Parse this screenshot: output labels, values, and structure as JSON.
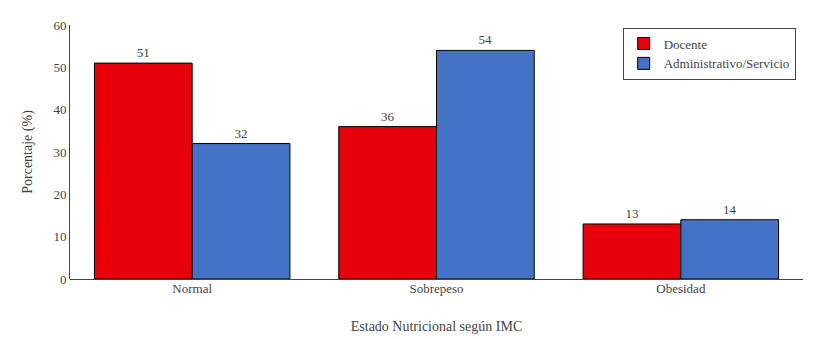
{
  "chart_data": {
    "type": "bar",
    "categories": [
      "Normal",
      "Sobrepeso",
      "Obesidad"
    ],
    "series": [
      {
        "name": "Docente",
        "color": "#e8000a",
        "values": [
          51,
          36,
          13
        ]
      },
      {
        "name": "Administrativo/Servicio",
        "color": "#4472c4",
        "values": [
          32,
          54,
          14
        ]
      }
    ],
    "xlabel": "Estado Nutricional según IMC",
    "ylabel": "Porcentaje (%)",
    "ylim": [
      0,
      60
    ],
    "yticks": [
      0,
      10,
      20,
      30,
      40,
      50,
      60
    ],
    "grid": false,
    "legend": "upper right",
    "data_labels": true
  }
}
